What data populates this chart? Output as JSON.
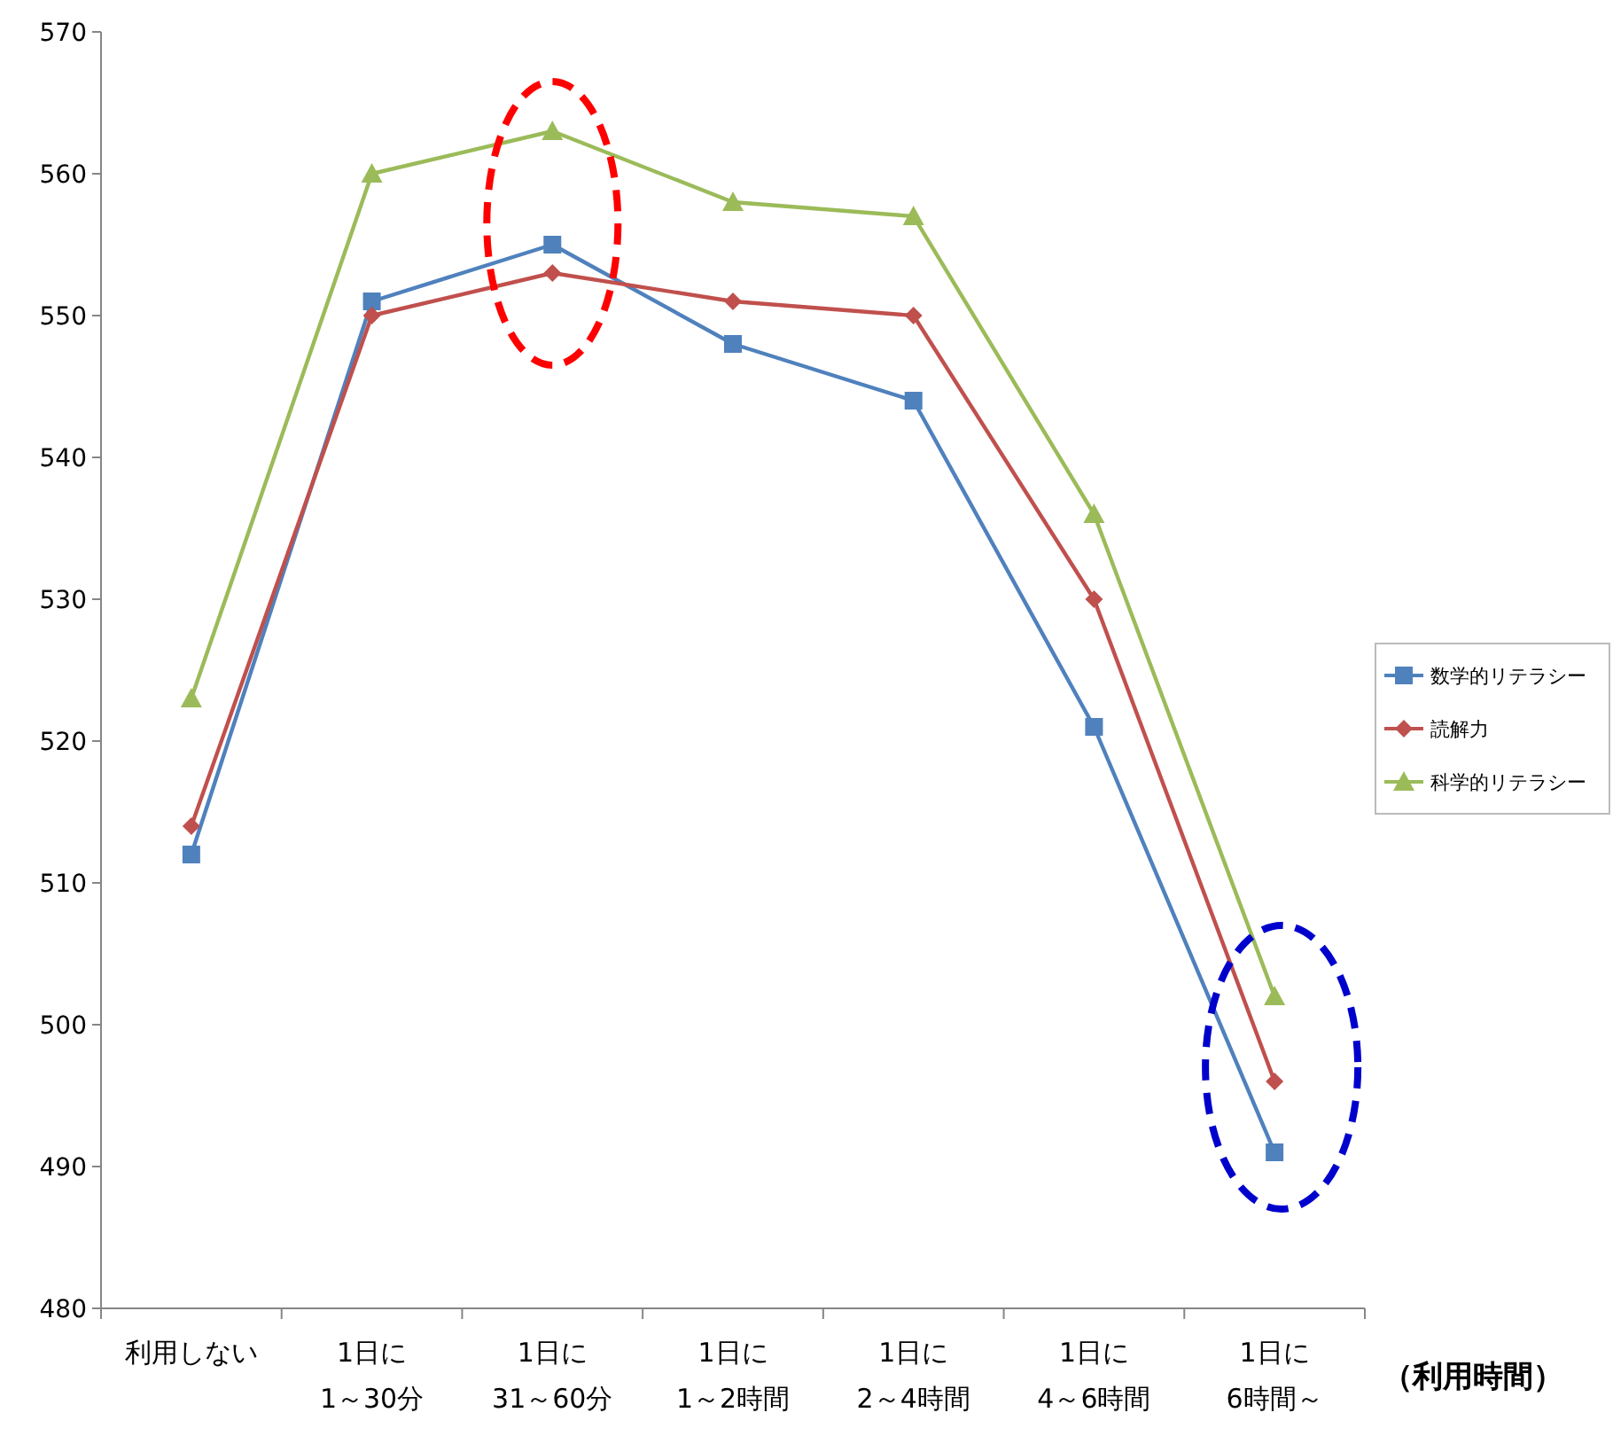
{
  "chart_data": {
    "type": "line",
    "xlabel": "**（利用時間）**",
    "categories": [
      "利用しない",
      "1日に\n1～30分",
      "1日に\n31～60分",
      "1日に\n1～2時間",
      "1日に\n2～4時間",
      "1日に\n4～6時間",
      "1日に\n6時間～"
    ],
    "series": [
      {
        "name": "数学的リテラシー",
        "color": "#4f81bd",
        "marker": "square",
        "values": [
          512,
          551,
          555,
          548,
          544,
          521,
          491
        ]
      },
      {
        "name": "読解力",
        "color": "#c0504d",
        "marker": "diamond",
        "values": [
          514,
          550,
          553,
          551,
          550,
          530,
          496
        ]
      },
      {
        "name": "科学的リテラシー",
        "color": "#9bbb59",
        "marker": "triangle",
        "values": [
          523,
          560,
          563,
          558,
          557,
          536,
          502
        ]
      }
    ],
    "ylim": [
      480,
      570
    ],
    "yticks": [
      480,
      490,
      500,
      510,
      520,
      530,
      540,
      550,
      560,
      570
    ],
    "grid": false,
    "legend": "right"
  }
}
